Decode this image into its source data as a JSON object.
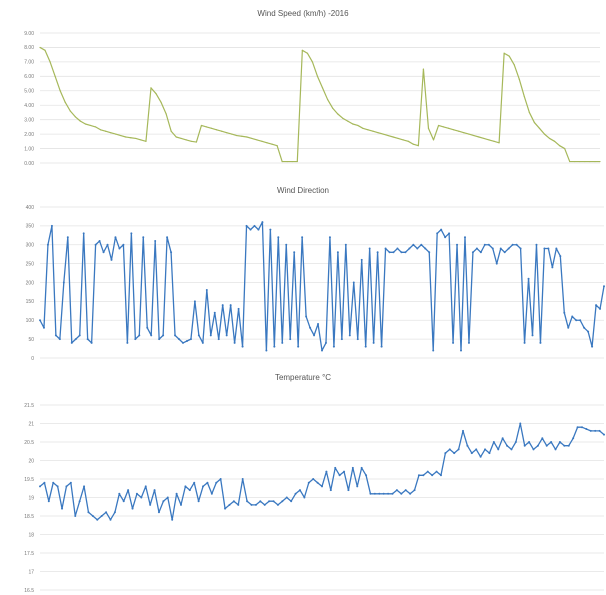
{
  "chart_data": [
    {
      "type": "line",
      "title": "Wind Speed (km/h) -2016",
      "xlabel": "",
      "ylabel": "",
      "ylim": [
        0,
        9
      ],
      "y_ticks": [
        "9.00",
        "8.00",
        "7.00",
        "6.00",
        "5.00",
        "4.00",
        "3.00",
        "2.00",
        "1.00",
        "0.00"
      ],
      "grid": true,
      "color": "#a6b85a",
      "series": [
        {
          "values": [
            8.0,
            7.8,
            7.0,
            6.0,
            5.0,
            4.2,
            3.6,
            3.2,
            2.9,
            2.7,
            2.6,
            2.5,
            2.3,
            2.2,
            2.1,
            2.0,
            1.9,
            1.8,
            1.75,
            1.7,
            1.6,
            1.5,
            5.2,
            4.8,
            4.2,
            3.4,
            2.2,
            1.8,
            1.7,
            1.6,
            1.5,
            1.45,
            2.6,
            2.5,
            2.4,
            2.3,
            2.2,
            2.1,
            2.0,
            1.9,
            1.85,
            1.8,
            1.7,
            1.6,
            1.5,
            1.4,
            1.3,
            1.2,
            0.1,
            0.1,
            0.1,
            0.1,
            7.8,
            7.6,
            7.0,
            6.0,
            5.2,
            4.4,
            3.8,
            3.4,
            3.1,
            2.9,
            2.7,
            2.6,
            2.4,
            2.3,
            2.2,
            2.1,
            2.0,
            1.9,
            1.8,
            1.7,
            1.6,
            1.5,
            1.3,
            1.2,
            6.5,
            2.4,
            1.6,
            2.6,
            2.5,
            2.4,
            2.3,
            2.2,
            2.1,
            2.0,
            1.9,
            1.8,
            1.7,
            1.6,
            1.5,
            1.4,
            7.6,
            7.4,
            6.8,
            5.8,
            4.6,
            3.5,
            2.8,
            2.4,
            2.0,
            1.7,
            1.5,
            1.2,
            1.0,
            0.1,
            0.1,
            0.1,
            0.1,
            0.1,
            0.1,
            0.1
          ]
        }
      ]
    },
    {
      "type": "line",
      "title": "Wind Direction",
      "xlabel": "",
      "ylabel": "",
      "ylim": [
        0,
        400
      ],
      "y_ticks": [
        "400",
        "350",
        "300",
        "250",
        "200",
        "150",
        "100",
        "50",
        "0"
      ],
      "grid": true,
      "color": "#3a78c0",
      "series": [
        {
          "values": [
            100,
            80,
            300,
            350,
            60,
            50,
            200,
            320,
            40,
            50,
            60,
            330,
            50,
            40,
            300,
            310,
            280,
            300,
            260,
            320,
            290,
            300,
            40,
            330,
            50,
            60,
            320,
            80,
            60,
            310,
            50,
            60,
            320,
            280,
            60,
            50,
            40,
            45,
            50,
            150,
            60,
            40,
            180,
            60,
            120,
            50,
            140,
            60,
            140,
            40,
            130,
            30,
            350,
            340,
            350,
            340,
            360,
            20,
            340,
            30,
            320,
            40,
            300,
            50,
            280,
            30,
            320,
            110,
            80,
            60,
            90,
            20,
            40,
            320,
            30,
            280,
            50,
            300,
            60,
            200,
            50,
            260,
            30,
            290,
            40,
            280,
            30,
            290,
            280,
            280,
            290,
            280,
            280,
            290,
            300,
            290,
            300,
            290,
            280,
            20,
            330,
            340,
            320,
            330,
            40,
            300,
            20,
            320,
            40,
            280,
            290,
            280,
            300,
            300,
            290,
            250,
            290,
            280,
            290,
            300,
            300,
            290,
            40,
            210,
            60,
            300,
            40,
            290,
            290,
            240,
            290,
            270,
            120,
            80,
            110,
            100,
            100,
            80,
            70,
            30,
            140,
            130,
            190
          ]
        }
      ]
    },
    {
      "type": "line",
      "title": "Temperature °C",
      "xlabel": "",
      "ylabel": "",
      "ylim": [
        16.5,
        21.5
      ],
      "y_ticks": [
        "21.5",
        "21",
        "20.5",
        "20",
        "19.5",
        "19",
        "18.5",
        "18",
        "17.5",
        "17",
        "16.5"
      ],
      "grid": true,
      "color": "#3a78c0",
      "series": [
        {
          "values": [
            19.3,
            19.4,
            18.9,
            19.4,
            19.3,
            18.7,
            19.3,
            19.4,
            18.5,
            18.9,
            19.3,
            18.6,
            18.5,
            18.4,
            18.5,
            18.6,
            18.4,
            18.6,
            19.1,
            18.9,
            19.2,
            18.7,
            19.1,
            19.0,
            19.3,
            18.8,
            19.2,
            18.6,
            18.9,
            19.0,
            18.4,
            19.1,
            18.8,
            19.3,
            19.2,
            19.4,
            18.9,
            19.3,
            19.4,
            19.1,
            19.4,
            19.5,
            18.7,
            18.8,
            18.9,
            18.8,
            19.5,
            18.9,
            18.8,
            18.8,
            18.9,
            18.8,
            18.9,
            18.9,
            18.8,
            18.9,
            19.0,
            18.9,
            19.1,
            19.2,
            19.0,
            19.4,
            19.5,
            19.4,
            19.3,
            19.7,
            19.2,
            19.8,
            19.6,
            19.7,
            19.2,
            19.8,
            19.3,
            19.8,
            19.6,
            19.1,
            19.1,
            19.1,
            19.1,
            19.1,
            19.1,
            19.2,
            19.1,
            19.2,
            19.1,
            19.2,
            19.6,
            19.6,
            19.7,
            19.6,
            19.7,
            19.6,
            20.2,
            20.3,
            20.2,
            20.3,
            20.8,
            20.4,
            20.2,
            20.3,
            20.1,
            20.3,
            20.2,
            20.5,
            20.3,
            20.6,
            20.4,
            20.3,
            20.5,
            21.0,
            20.4,
            20.5,
            20.3,
            20.4,
            20.6,
            20.4,
            20.5,
            20.3,
            20.5,
            20.4,
            20.4,
            20.6,
            20.9,
            20.9,
            20.85,
            20.8,
            20.8,
            20.8,
            20.7
          ]
        }
      ]
    }
  ]
}
